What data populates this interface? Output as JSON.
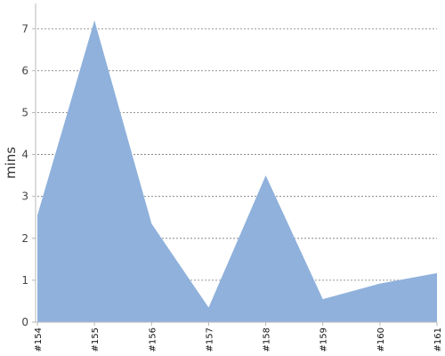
{
  "chart_data": {
    "type": "area",
    "title": "",
    "xlabel": "",
    "ylabel": "mins",
    "categories": [
      "#154",
      "#155",
      "#156",
      "#157",
      "#158",
      "#159",
      "#160",
      "#161"
    ],
    "series": [
      {
        "values": [
          2.55,
          7.2,
          2.35,
          0.35,
          3.5,
          0.55,
          0.92,
          1.17
        ],
        "color": "#8fb1dc"
      }
    ],
    "yticks": [
      0,
      1,
      2,
      3,
      4,
      5,
      6,
      7
    ],
    "ylim": [
      0,
      7.6
    ],
    "grid": true,
    "legend": "none"
  }
}
